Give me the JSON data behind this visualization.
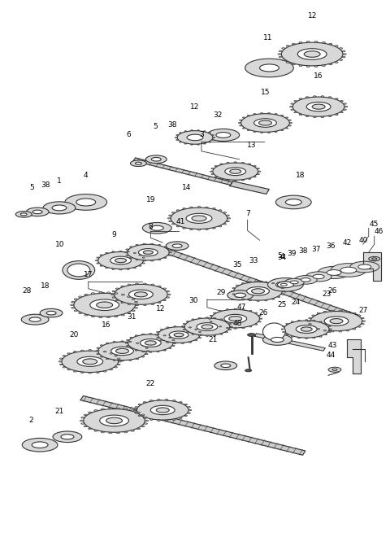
{
  "bg_color": "#ffffff",
  "line_color": "#222222",
  "gear_fill": "#d8d8d8",
  "gear_edge": "#222222",
  "shaft_fill": "#cccccc",
  "iso_ratio": 0.38,
  "figsize": [
    4.8,
    6.55
  ],
  "dpi": 100
}
